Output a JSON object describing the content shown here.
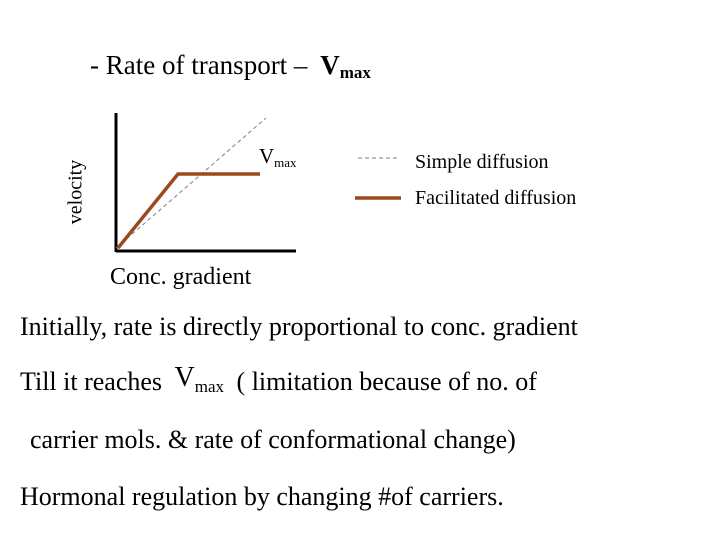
{
  "title": {
    "prefix": "- Rate of transport – ",
    "symbol": "V",
    "subscript": "max"
  },
  "graph": {
    "ylabel": "velocity",
    "xlabel": "Conc. gradient",
    "vmax_label": {
      "symbol": "V",
      "subscript": "max"
    },
    "legend": [
      {
        "label": "Simple diffusion",
        "style": "dashed",
        "color": "#808080"
      },
      {
        "label": "Facilitated diffusion",
        "style": "solid",
        "color": "#9B4A1F"
      }
    ]
  },
  "text_lines": {
    "line1": "Initially, rate is directly proportional to conc. gradient",
    "line2_before": "Till it reaches ",
    "line2_symbol": "V",
    "line2_subscript": "max",
    "line2_after": " ( limitation because of no. of",
    "line3": "carrier mols. & rate of conformational change)",
    "line4": "Hormonal regulation by changing #of carriers."
  },
  "colors": {
    "axis": "#000000",
    "facilitated": "#9B4A1F",
    "simple": "#808080"
  }
}
